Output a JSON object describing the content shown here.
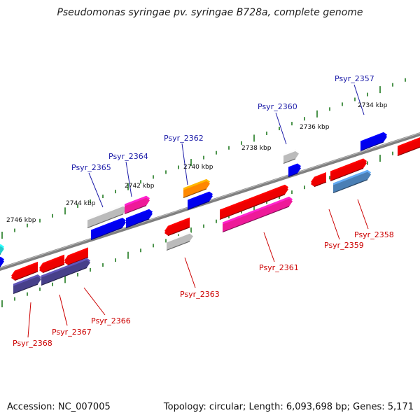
{
  "title": "Pseudomonas syringae pv. syringae B728a, complete genome",
  "footer": {
    "accession": "Accession: NC_007005",
    "summary": "Topology: circular; Length: 6,093,698 bp; Genes: 5,171"
  },
  "ruler_labels": [
    "2734 kbp",
    "2736 kbp",
    "2738 kbp",
    "2740 kbp",
    "2742 kbp",
    "2744 kbp",
    "2746 kbp"
  ],
  "gene_labels_top": [
    "Psyr_2357",
    "Psyr_2360",
    "Psyr_2362",
    "Psyr_2364",
    "Psyr_2365"
  ],
  "gene_labels_bottom": [
    "Psyr_2358",
    "Psyr_2359",
    "Psyr_2361",
    "Psyr_2363",
    "Psyr_2366",
    "Psyr_2367",
    "Psyr_2368"
  ],
  "colors": {
    "label_top": "#1a1aa8",
    "label_bottom": "#cc0000",
    "tick": "#1f7a1f",
    "backbone": "#808080",
    "red": "#ee0000",
    "blue": "#0000ee",
    "pink": "#ee1a99",
    "gray": "#bbbbbb",
    "orange": "#ff8800",
    "navy": "#47408a",
    "steel": "#4a7fb5",
    "cyan": "#22cccc"
  }
}
